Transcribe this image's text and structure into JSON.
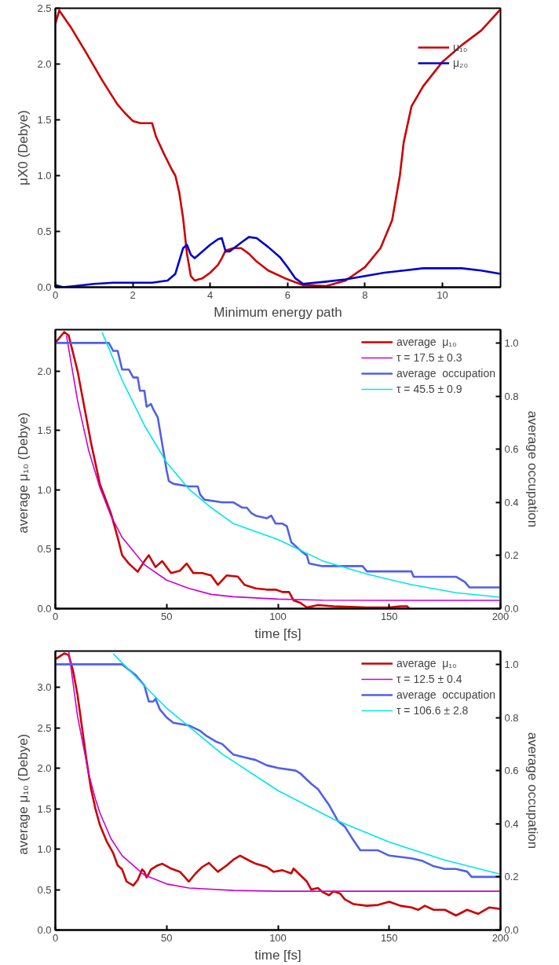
{
  "chart_data": [
    {
      "type": "line",
      "xlabel": "Minimum energy path",
      "ylabel": "μX0 (Debye)",
      "xlim": [
        0,
        11.5
      ],
      "ylim": [
        0,
        2.5
      ],
      "xticks": [
        0,
        2,
        4,
        6,
        8,
        10
      ],
      "yticks": [
        {
          "value": 0,
          "label": "0.0"
        },
        {
          "value": 0.5,
          "label": "0.5"
        },
        {
          "value": 1,
          "label": "1.0"
        },
        {
          "value": 1.5,
          "label": "1.5"
        },
        {
          "value": 2,
          "label": "2.0"
        },
        {
          "value": 2.5,
          "label": "2.5"
        }
      ],
      "grid": false,
      "legend": "top right",
      "series": [
        {
          "name": "μ₁₀",
          "color": "#cc0000",
          "x": [
            0,
            0.1,
            0.4,
            0.8,
            1.2,
            1.6,
            1.8,
            2.0,
            2.2,
            2.5,
            2.6,
            2.8,
            3.0,
            3.1,
            3.2,
            3.3,
            3.4,
            3.5,
            3.6,
            3.8,
            4.0,
            4.2,
            4.3,
            4.4,
            4.6,
            4.8,
            5.0,
            5.2,
            5.5,
            6.0,
            6.4,
            7.0,
            7.5,
            8.0,
            8.4,
            8.7,
            8.9,
            9.0,
            9.2,
            9.5,
            10.0,
            10.5,
            11.0,
            11.5
          ],
          "values": [
            2.36,
            2.48,
            2.33,
            2.1,
            1.86,
            1.64,
            1.56,
            1.49,
            1.47,
            1.47,
            1.35,
            1.2,
            1.06,
            1.0,
            0.85,
            0.62,
            0.3,
            0.1,
            0.06,
            0.08,
            0.13,
            0.2,
            0.26,
            0.33,
            0.35,
            0.35,
            0.3,
            0.23,
            0.15,
            0.07,
            0.02,
            0.01,
            0.06,
            0.18,
            0.35,
            0.6,
            1.0,
            1.3,
            1.62,
            1.8,
            2.02,
            2.17,
            2.3,
            2.49
          ]
        },
        {
          "name": "μ₂₀",
          "color": "#0000cc",
          "x": [
            0,
            0.2,
            0.5,
            1.0,
            1.5,
            2.0,
            2.5,
            2.9,
            3.1,
            3.3,
            3.4,
            3.5,
            3.6,
            3.8,
            4.0,
            4.2,
            4.3,
            4.4,
            4.5,
            4.8,
            5.0,
            5.2,
            5.5,
            5.8,
            6.0,
            6.2,
            6.4,
            7.0,
            7.5,
            8.0,
            8.5,
            9.0,
            9.5,
            10.0,
            10.5,
            11.0,
            11.5
          ],
          "values": [
            0.02,
            0.0,
            0.01,
            0.03,
            0.04,
            0.04,
            0.04,
            0.06,
            0.12,
            0.35,
            0.38,
            0.29,
            0.26,
            0.32,
            0.38,
            0.43,
            0.44,
            0.32,
            0.32,
            0.4,
            0.45,
            0.44,
            0.36,
            0.27,
            0.18,
            0.08,
            0.03,
            0.05,
            0.07,
            0.1,
            0.13,
            0.15,
            0.17,
            0.17,
            0.17,
            0.15,
            0.12
          ]
        }
      ]
    },
    {
      "type": "line",
      "xlabel": "time [fs]",
      "ylabel": "average  μ₁₀  (Debye)",
      "y2label": "average occupation",
      "xlim": [
        0,
        200
      ],
      "ylim": [
        0,
        2.35
      ],
      "y2lim": [
        0,
        1.05
      ],
      "xticks": [
        0,
        50,
        100,
        150,
        200
      ],
      "yticks": [
        {
          "value": 0,
          "label": "0.0"
        },
        {
          "value": 0.5,
          "label": "0.5"
        },
        {
          "value": 1,
          "label": "1.0"
        },
        {
          "value": 1.5,
          "label": "1.5"
        },
        {
          "value": 2,
          "label": "2.0"
        }
      ],
      "y2ticks": [
        {
          "value": 0,
          "label": "0.0"
        },
        {
          "value": 0.2,
          "label": "0.2"
        },
        {
          "value": 0.4,
          "label": "0.4"
        },
        {
          "value": 0.6,
          "label": "0.6"
        },
        {
          "value": 0.8,
          "label": "0.8"
        },
        {
          "value": 1,
          "label": "1.0"
        }
      ],
      "grid": false,
      "legend": "top right",
      "series": [
        {
          "name": "average  μ₁₀",
          "color": "#cc0000",
          "x": [
            0,
            4,
            6,
            10,
            13,
            16,
            20,
            22,
            25,
            28,
            30,
            33,
            37,
            40,
            42,
            45,
            48,
            52,
            56,
            59,
            62,
            66,
            70,
            73,
            77,
            82,
            85,
            90,
            95,
            99,
            102,
            105,
            107,
            110,
            113,
            118,
            125,
            140,
            150,
            155,
            158,
            159
          ],
          "values": [
            2.24,
            2.33,
            2.3,
            2.0,
            1.7,
            1.4,
            1.05,
            0.95,
            0.8,
            0.6,
            0.45,
            0.38,
            0.31,
            0.4,
            0.45,
            0.35,
            0.4,
            0.3,
            0.32,
            0.38,
            0.3,
            0.3,
            0.28,
            0.2,
            0.28,
            0.27,
            0.2,
            0.17,
            0.16,
            0.16,
            0.14,
            0.14,
            0.07,
            0.05,
            0.01,
            0.03,
            0.02,
            0.01,
            0.01,
            0.02,
            0.02,
            0.0
          ]
        },
        {
          "name": "τ = 17.5 ± 0.3",
          "color": "#cc00cc",
          "x": [
            5,
            10,
            15,
            20,
            25,
            30,
            40,
            50,
            60,
            70,
            80,
            100,
            120,
            150,
            200
          ],
          "values": [
            2.3,
            1.75,
            1.33,
            1.02,
            0.78,
            0.6,
            0.37,
            0.24,
            0.17,
            0.12,
            0.1,
            0.08,
            0.071,
            0.07,
            0.07
          ]
        },
        {
          "name": "average  occupation",
          "color": "#5060e8",
          "axis": "y2",
          "x": [
            0,
            24,
            26,
            28,
            30,
            33,
            35,
            37,
            38,
            40,
            41,
            43,
            44,
            46,
            48,
            50,
            51,
            53,
            60,
            64,
            65,
            67,
            75,
            80,
            82,
            84,
            86,
            88,
            90,
            95,
            97,
            99,
            102,
            104,
            106,
            110,
            113,
            114,
            120,
            138,
            140,
            160,
            161,
            180,
            184,
            186,
            200
          ],
          "values": [
            1.0,
            1.0,
            0.97,
            0.97,
            0.9,
            0.9,
            0.87,
            0.87,
            0.82,
            0.82,
            0.76,
            0.77,
            0.75,
            0.72,
            0.62,
            0.52,
            0.48,
            0.47,
            0.46,
            0.46,
            0.43,
            0.41,
            0.4,
            0.4,
            0.39,
            0.38,
            0.38,
            0.36,
            0.35,
            0.34,
            0.35,
            0.32,
            0.32,
            0.31,
            0.25,
            0.22,
            0.2,
            0.17,
            0.16,
            0.16,
            0.14,
            0.14,
            0.12,
            0.12,
            0.1,
            0.08,
            0.08
          ]
        },
        {
          "name": "τ = 45.5 ± 0.9",
          "color": "#00e5ee",
          "axis": "y2",
          "x": [
            21,
            30,
            40,
            50,
            60,
            70,
            80,
            90,
            100,
            120,
            140,
            160,
            180,
            200
          ],
          "values": [
            1.04,
            0.86,
            0.69,
            0.55,
            0.45,
            0.38,
            0.32,
            0.29,
            0.26,
            0.18,
            0.13,
            0.09,
            0.06,
            0.043
          ]
        }
      ]
    },
    {
      "type": "line",
      "xlabel": "time [fs]",
      "ylabel": "average  μ₁₀  (Debye)",
      "y2label": "average occupation",
      "xlim": [
        0,
        200
      ],
      "ylim": [
        0,
        3.45
      ],
      "y2lim": [
        0,
        1.05
      ],
      "xticks": [
        0,
        50,
        100,
        150,
        200
      ],
      "yticks": [
        {
          "value": 0,
          "label": "0.0"
        },
        {
          "value": 0.5,
          "label": "0.5"
        },
        {
          "value": 1,
          "label": "1.0"
        },
        {
          "value": 1.5,
          "label": "1.5"
        },
        {
          "value": 2,
          "label": "2.0"
        },
        {
          "value": 2.5,
          "label": "2.5"
        },
        {
          "value": 3,
          "label": "3.0"
        }
      ],
      "y2ticks": [
        {
          "value": 0,
          "label": "0.0"
        },
        {
          "value": 0.2,
          "label": "0.2"
        },
        {
          "value": 0.4,
          "label": "0.4"
        },
        {
          "value": 0.6,
          "label": "0.6"
        },
        {
          "value": 0.8,
          "label": "0.8"
        },
        {
          "value": 1,
          "label": "1.0"
        }
      ],
      "grid": false,
      "legend": "top right",
      "series": [
        {
          "name": "average  μ₁₀",
          "color": "#cc0000",
          "x": [
            0,
            4,
            6,
            8,
            10,
            12,
            14,
            16,
            18,
            20,
            23,
            26,
            28,
            30,
            32,
            35,
            37,
            39,
            40,
            41,
            43,
            46,
            48,
            52,
            56,
            60,
            63,
            66,
            69,
            73,
            77,
            80,
            83,
            87,
            90,
            95,
            98,
            102,
            106,
            107,
            110,
            113,
            115,
            118,
            120,
            123,
            125,
            128,
            130,
            134,
            140,
            145,
            150,
            155,
            160,
            163,
            166,
            170,
            175,
            180,
            185,
            190,
            195,
            200
          ],
          "values": [
            3.35,
            3.42,
            3.4,
            3.2,
            2.9,
            2.5,
            2.1,
            1.75,
            1.5,
            1.3,
            1.1,
            0.95,
            0.8,
            0.75,
            0.6,
            0.55,
            0.62,
            0.75,
            0.72,
            0.65,
            0.75,
            0.8,
            0.82,
            0.76,
            0.72,
            0.6,
            0.7,
            0.78,
            0.83,
            0.72,
            0.8,
            0.87,
            0.92,
            0.86,
            0.82,
            0.78,
            0.72,
            0.74,
            0.7,
            0.76,
            0.68,
            0.6,
            0.5,
            0.52,
            0.47,
            0.43,
            0.48,
            0.45,
            0.38,
            0.32,
            0.3,
            0.31,
            0.35,
            0.3,
            0.28,
            0.25,
            0.3,
            0.25,
            0.25,
            0.18,
            0.25,
            0.2,
            0.28,
            0.26
          ]
        },
        {
          "name": "τ = 12.5 ± 0.4",
          "color": "#cc00cc",
          "x": [
            6,
            10,
            15,
            18,
            20,
            25,
            30,
            40,
            50,
            60,
            80,
            100,
            200
          ],
          "values": [
            3.45,
            2.64,
            1.93,
            1.62,
            1.45,
            1.13,
            0.92,
            0.68,
            0.57,
            0.52,
            0.49,
            0.48,
            0.48
          ]
        },
        {
          "name": "average  occupation",
          "color": "#5060e8",
          "axis": "y2",
          "x": [
            0,
            30,
            33,
            36,
            38,
            40,
            41,
            42,
            44,
            45,
            47,
            50,
            53,
            60,
            65,
            68,
            72,
            75,
            80,
            85,
            90,
            95,
            100,
            108,
            110,
            115,
            118,
            123,
            127,
            130,
            133,
            137,
            145,
            150,
            160,
            165,
            170,
            175,
            180,
            185,
            187,
            200
          ],
          "values": [
            1.0,
            1.0,
            0.98,
            0.96,
            0.94,
            0.92,
            0.89,
            0.86,
            0.86,
            0.87,
            0.83,
            0.8,
            0.78,
            0.77,
            0.75,
            0.73,
            0.71,
            0.7,
            0.66,
            0.65,
            0.64,
            0.62,
            0.61,
            0.6,
            0.59,
            0.55,
            0.53,
            0.47,
            0.41,
            0.39,
            0.35,
            0.3,
            0.3,
            0.28,
            0.27,
            0.26,
            0.24,
            0.23,
            0.23,
            0.22,
            0.2,
            0.2
          ]
        },
        {
          "name": "τ = 106.6 ± 2.8",
          "color": "#00e5ee",
          "axis": "y2",
          "x": [
            26,
            40,
            50,
            75,
            100,
            125,
            150,
            175,
            200
          ],
          "values": [
            1.04,
            0.92,
            0.835,
            0.662,
            0.525,
            0.417,
            0.331,
            0.263,
            0.21
          ]
        }
      ]
    }
  ]
}
